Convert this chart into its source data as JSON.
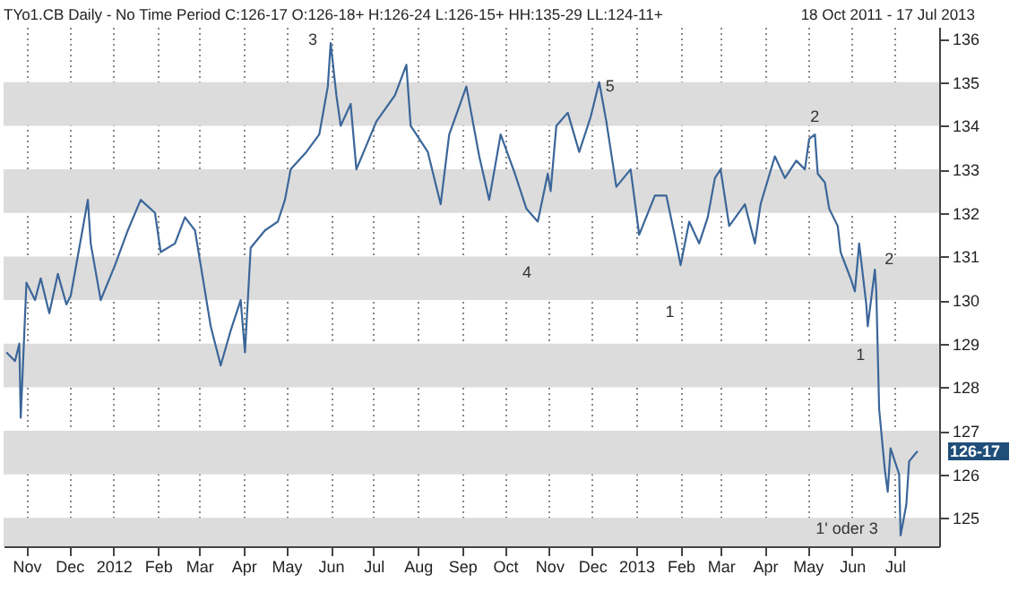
{
  "chart_data": {
    "type": "line",
    "title": "TYo1.CB Daily -  No Time Period   C:126-17  O:126-18+  H:126-24  L:126-15+  HH:135-29  LL:124-11+",
    "subtitle": "18 Oct 2011  -  17 Jul 2013",
    "x": [
      "2011-10-18",
      "2011-10-24",
      "2011-10-27",
      "2011-10-28",
      "2011-11-01",
      "2011-11-07",
      "2011-11-11",
      "2011-11-17",
      "2011-11-23",
      "2011-11-29",
      "2011-12-02",
      "2011-12-08",
      "2011-12-14",
      "2011-12-16",
      "2011-12-23",
      "2012-01-02",
      "2012-01-11",
      "2012-01-20",
      "2012-01-30",
      "2012-02-03",
      "2012-02-13",
      "2012-02-20",
      "2012-02-27",
      "2012-03-02",
      "2012-03-09",
      "2012-03-16",
      "2012-03-23",
      "2012-03-30",
      "2012-04-02",
      "2012-04-06",
      "2012-04-16",
      "2012-04-25",
      "2012-04-30",
      "2012-05-04",
      "2012-05-15",
      "2012-05-24",
      "2012-05-30",
      "2012-06-01",
      "2012-06-05",
      "2012-06-08",
      "2012-06-15",
      "2012-06-19",
      "2012-07-03",
      "2012-07-16",
      "2012-07-24",
      "2012-07-27",
      "2012-08-08",
      "2012-08-17",
      "2012-08-23",
      "2012-09-04",
      "2012-09-13",
      "2012-09-20",
      "2012-09-28",
      "2012-10-08",
      "2012-10-16",
      "2012-10-24",
      "2012-10-31",
      "2012-11-02",
      "2012-11-06",
      "2012-11-14",
      "2012-11-22",
      "2012-11-30",
      "2012-12-06",
      "2012-12-11",
      "2012-12-18",
      "2012-12-28",
      "2013-01-03",
      "2013-01-14",
      "2013-01-22",
      "2013-01-29",
      "2013-02-01",
      "2013-02-07",
      "2013-02-14",
      "2013-02-20",
      "2013-02-25",
      "2013-03-01",
      "2013-03-07",
      "2013-03-18",
      "2013-03-25",
      "2013-03-29",
      "2013-04-08",
      "2013-04-15",
      "2013-04-23",
      "2013-04-29",
      "2013-05-02",
      "2013-05-06",
      "2013-05-08",
      "2013-05-13",
      "2013-05-16",
      "2013-05-22",
      "2013-05-24",
      "2013-05-31",
      "2013-06-03",
      "2013-06-06",
      "2013-06-11",
      "2013-06-12",
      "2013-06-17",
      "2013-06-18",
      "2013-06-20",
      "2013-06-24",
      "2013-06-26",
      "2013-06-28",
      "2013-07-01",
      "2013-07-04",
      "2013-07-05",
      "2013-07-09",
      "2013-07-11",
      "2013-07-16",
      "2013-07-17"
    ],
    "series": [
      {
        "color": "#3b6699",
        "values": [
          128.8,
          128.6,
          129.0,
          127.3,
          130.4,
          130.0,
          130.5,
          129.7,
          130.6,
          129.9,
          130.1,
          131.2,
          132.3,
          131.3,
          130.0,
          130.8,
          131.6,
          132.3,
          132.0,
          131.1,
          131.3,
          131.9,
          131.6,
          130.8,
          129.4,
          128.5,
          129.3,
          130.0,
          128.8,
          131.2,
          131.6,
          131.8,
          132.3,
          133.0,
          133.4,
          133.8,
          134.9,
          135.9,
          134.7,
          134.0,
          134.5,
          133.0,
          134.1,
          134.7,
          135.4,
          134.0,
          133.4,
          132.2,
          133.8,
          134.9,
          133.3,
          132.3,
          133.8,
          132.9,
          132.1,
          131.8,
          132.9,
          132.5,
          134.0,
          134.3,
          133.4,
          134.2,
          135.0,
          134.1,
          132.6,
          133.0,
          131.5,
          132.4,
          132.4,
          131.3,
          130.8,
          131.8,
          131.3,
          131.9,
          132.8,
          133.0,
          131.7,
          132.2,
          131.3,
          132.2,
          133.3,
          132.8,
          133.2,
          133.0,
          133.7,
          133.8,
          132.9,
          132.7,
          132.1,
          131.7,
          131.1,
          130.5,
          130.2,
          131.3,
          129.9,
          129.4,
          130.7,
          130.2,
          127.5,
          126.1,
          125.6,
          126.6,
          126.3,
          126.0,
          124.6,
          125.3,
          126.3,
          126.5,
          126.53
        ]
      }
    ],
    "xlim": [
      "2011-10-16",
      "2013-08-01"
    ],
    "xticks": [
      {
        "value": "2011-11-01",
        "label": "Nov"
      },
      {
        "value": "2011-12-01",
        "label": "Dec"
      },
      {
        "value": "2012-01-01",
        "label": "2012"
      },
      {
        "value": "2012-02-01",
        "label": "Feb"
      },
      {
        "value": "2012-03-01",
        "label": "Mar"
      },
      {
        "value": "2012-04-01",
        "label": "Apr"
      },
      {
        "value": "2012-05-01",
        "label": "May"
      },
      {
        "value": "2012-06-01",
        "label": "Jun"
      },
      {
        "value": "2012-07-01",
        "label": "Jul"
      },
      {
        "value": "2012-08-01",
        "label": "Aug"
      },
      {
        "value": "2012-09-01",
        "label": "Sep"
      },
      {
        "value": "2012-10-01",
        "label": "Oct"
      },
      {
        "value": "2012-11-01",
        "label": "Nov"
      },
      {
        "value": "2012-12-01",
        "label": "Dec"
      },
      {
        "value": "2013-01-01",
        "label": "2013"
      },
      {
        "value": "2013-02-01",
        "label": "Feb"
      },
      {
        "value": "2013-03-01",
        "label": "Mar"
      },
      {
        "value": "2013-04-01",
        "label": "Apr"
      },
      {
        "value": "2013-05-01",
        "label": "May"
      },
      {
        "value": "2013-06-01",
        "label": "Jun"
      },
      {
        "value": "2013-07-01",
        "label": "Jul"
      }
    ],
    "ylim": [
      124.35,
      136.27
    ],
    "yticks": [
      125,
      126,
      127,
      128,
      129,
      130,
      131,
      132,
      133,
      134,
      135,
      136
    ],
    "grid": true,
    "annotations": [
      {
        "text": "3",
        "x": "2012-06-01",
        "y": 135.9
      },
      {
        "text": "4",
        "x": "2012-10-24",
        "y": 131.8
      },
      {
        "text": "5",
        "x": "2012-12-06",
        "y": 135.0
      },
      {
        "text": "1",
        "x": "2013-02-01",
        "y": 130.8
      },
      {
        "text": "2",
        "x": "2013-05-06",
        "y": 133.8
      },
      {
        "text": "1",
        "x": "2013-06-12",
        "y": 129.4
      },
      {
        "text": "2",
        "x": "2013-06-17",
        "y": 130.7
      },
      {
        "text": "1' oder 3",
        "x": "2013-07-05",
        "y": 124.6
      },
      {
        "text": "126-17",
        "x": "2013-07-17",
        "y": 126.53
      }
    ]
  }
}
